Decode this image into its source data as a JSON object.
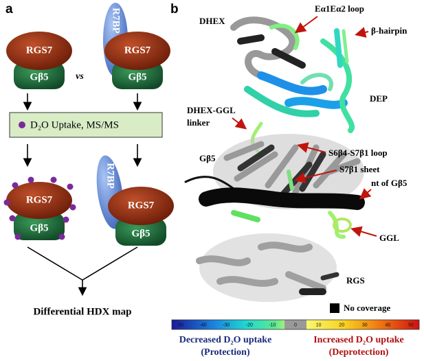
{
  "panel_a": {
    "label": "a",
    "top_left": {
      "rgs7": "RGS7",
      "gb5": "Gβ5"
    },
    "vs": "vs",
    "top_right": {
      "r7bp": "R7BP",
      "rgs7": "RGS7",
      "gb5": "Gβ5"
    },
    "step": "D₂O Uptake, MS/MS",
    "bottom_left": {
      "rgs7": "RGS7",
      "gb5": "Gβ5"
    },
    "bottom_right": {
      "r7bp": "R7BP",
      "rgs7": "RGS7",
      "gb5": "Gβ5"
    },
    "result": "Differential HDX map"
  },
  "panel_b": {
    "label": "b",
    "annotations": {
      "dhex": "DHEX",
      "ea1ea2_loop": "Eα1Eα2 loop",
      "beta_hairpin": "β-hairpin",
      "dep": "DEP",
      "dhex_ggl_line1": "DHEX-GGL",
      "dhex_ggl_line2": "linker",
      "s6b4_s7b1_loop": "S6β4-S7β1 loop",
      "gb5": "Gβ5",
      "s7b1_sheet": "S7β1 sheet",
      "nt_gb5": "nt of Gβ5",
      "ggl": "GGL",
      "rgs": "RGS"
    },
    "no_coverage": "No coverage",
    "colorbar_ticks": [
      -50,
      -40,
      -30,
      -20,
      -10,
      0,
      10,
      20,
      30,
      40,
      50
    ],
    "decreased": {
      "title": "Decreased D₂O uptake",
      "subtitle": "(Protection)"
    },
    "increased": {
      "title": "Increased D₂O uptake",
      "subtitle": "(Deprotection)"
    }
  }
}
